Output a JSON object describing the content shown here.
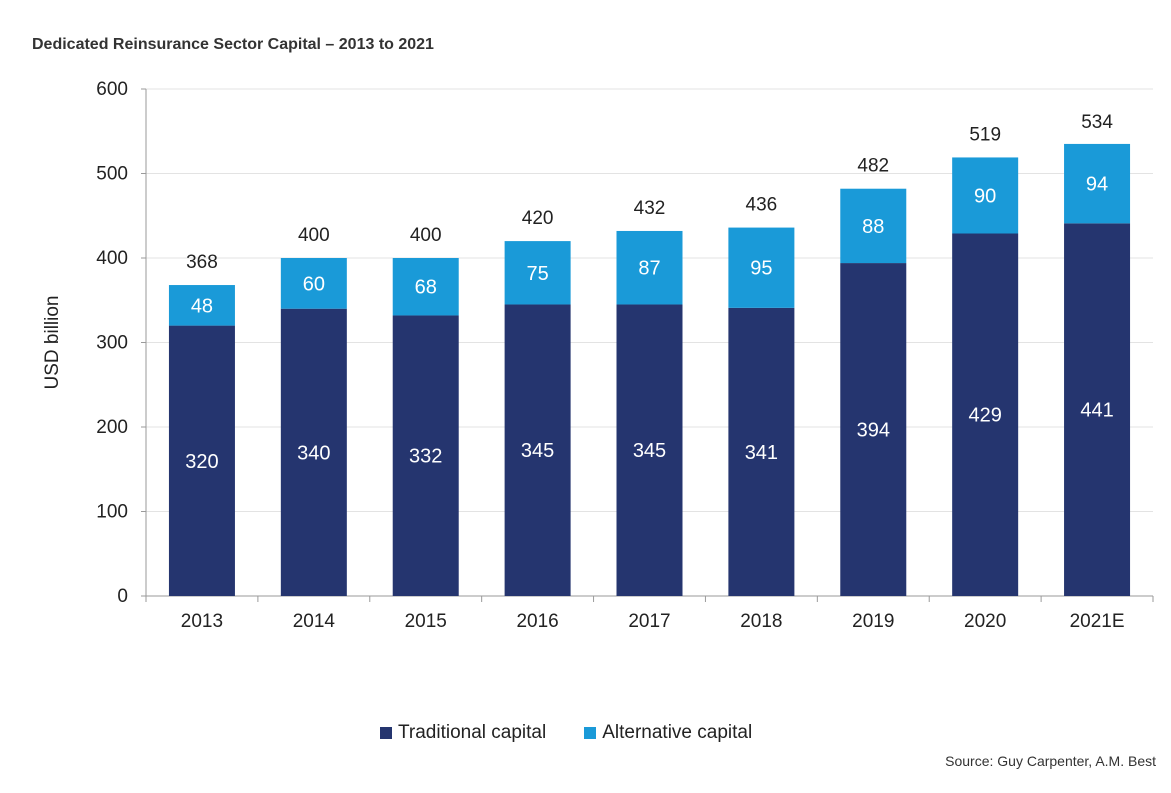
{
  "title": "Dedicated Reinsurance Sector Capital – 2013 to 2021",
  "source": "Source: Guy Carpenter, A.M. Best",
  "colors": {
    "traditional": "#25356f",
    "alternative": "#1a9ad8",
    "grid": "#e3e3e3",
    "axis": "#9a9a9a"
  },
  "chart_data": {
    "type": "bar",
    "stacked": true,
    "categories": [
      "2013",
      "2014",
      "2015",
      "2016",
      "2017",
      "2018",
      "2019",
      "2020",
      "2021E"
    ],
    "series": [
      {
        "name": "Traditional capital",
        "values": [
          320,
          340,
          332,
          345,
          345,
          341,
          394,
          429,
          441
        ]
      },
      {
        "name": "Alternative capital",
        "values": [
          48,
          60,
          68,
          75,
          87,
          95,
          88,
          90,
          94
        ]
      }
    ],
    "totals": [
      368,
      400,
      400,
      420,
      432,
      436,
      482,
      519,
      534
    ],
    "ylabel": "USD billion",
    "xlabel": "",
    "ylim": [
      0,
      600
    ],
    "yticks": [
      0,
      100,
      200,
      300,
      400,
      500,
      600
    ],
    "grid": true,
    "legend_position": "bottom"
  }
}
